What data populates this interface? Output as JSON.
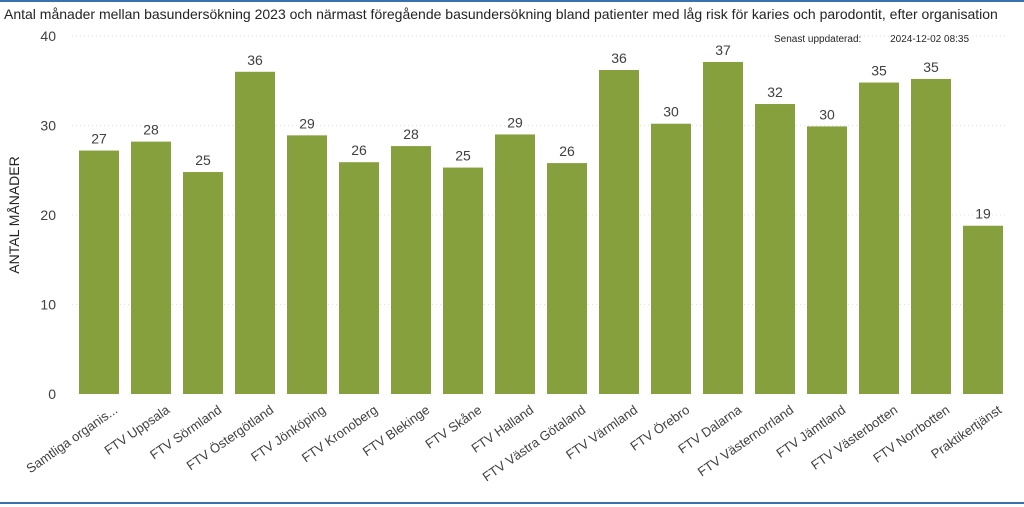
{
  "title": "Antal månader mellan basundersökning 2023 och närmast föregående basundersökning bland patienter med låg risk för karies och parodontit, efter organisation",
  "updated": {
    "label": "Senast uppdaterad:",
    "value": "2024-12-02 08:35"
  },
  "colors": {
    "bar": "#86a03e",
    "grid": "#e1e1e1",
    "text": "#252423",
    "label": "#404040",
    "frame": "#3a6fb0"
  },
  "chart_data": {
    "type": "bar",
    "ylabel": "ANTAL MÅNADER",
    "xlabel": "",
    "ylim": [
      0,
      40
    ],
    "yticks": [
      0,
      10,
      20,
      30,
      40
    ],
    "grid": true,
    "categories": [
      "Samtliga organis...",
      "FTV Uppsala",
      "FTV Sörmland",
      "FTV Östergötland",
      "FTV Jönköping",
      "FTV Kronoberg",
      "FTV Blekinge",
      "FTV Skåne",
      "FTV Halland",
      "FTV Västra Götaland",
      "FTV Värmland",
      "FTV Örebro",
      "FTV Dalarna",
      "FTV Västernorrland",
      "FTV Jämtland",
      "FTV Västerbotten",
      "FTV Norrbotten",
      "Praktikertjänst"
    ],
    "values": [
      27.2,
      28.2,
      24.8,
      36.0,
      28.9,
      25.9,
      27.7,
      25.3,
      29.0,
      25.8,
      36.2,
      30.2,
      37.1,
      32.4,
      29.9,
      34.8,
      35.2,
      18.8
    ],
    "labels": [
      "27",
      "28",
      "25",
      "36",
      "29",
      "26",
      "28",
      "25",
      "29",
      "26",
      "36",
      "30",
      "37",
      "32",
      "30",
      "35",
      "35",
      "19"
    ]
  }
}
